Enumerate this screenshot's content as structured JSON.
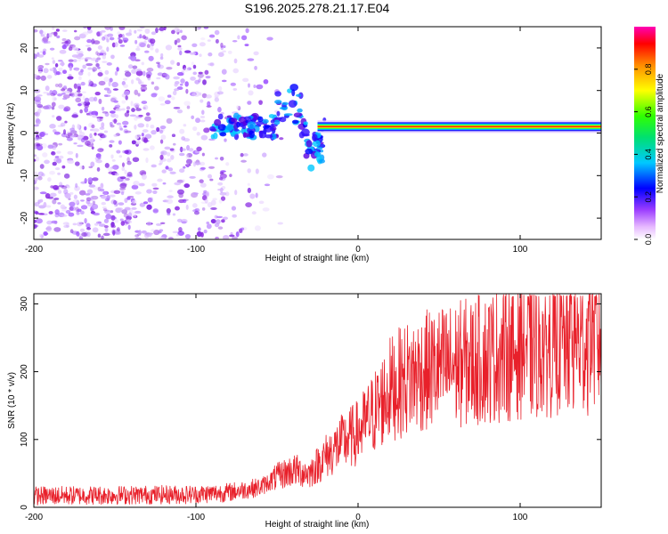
{
  "title": "S196.2025.278.21.17.E04",
  "colors": {
    "signal": "#e8202a",
    "scatter": "#8a2be2",
    "axis": "#000000"
  },
  "chart_data": [
    {
      "type": "heatmap",
      "name": "spectrogram",
      "xlabel": "Height of straight line (km)",
      "ylabel": "Frequency (Hz)",
      "xlim": [
        -200,
        150
      ],
      "ylim": [
        -25,
        25
      ],
      "xticks": [
        -200,
        -100,
        0,
        100
      ],
      "yticks": [
        -20,
        -10,
        0,
        10,
        20
      ],
      "dominant_frequency_hz": 1.5,
      "noise_band_x": [
        -200,
        -60
      ],
      "colorbar": {
        "label": "Normalized spectral amplitude",
        "range": [
          0.0,
          1.0
        ],
        "ticks": [
          0.0,
          0.2,
          0.4,
          0.6,
          0.8
        ],
        "tick_labels": [
          "0.0",
          "0.2",
          "0.4",
          "0.6",
          "0.8"
        ]
      }
    },
    {
      "type": "line",
      "name": "snr",
      "xlabel": "Height of straight line (km)",
      "ylabel": "SNR (10 * v/v)",
      "xlim": [
        -200,
        150
      ],
      "ylim": [
        0,
        315
      ],
      "xticks": [
        -200,
        -100,
        0,
        100
      ],
      "yticks": [
        0,
        100,
        200,
        300
      ],
      "series": [
        {
          "name": "SNR",
          "x": [
            -200,
            -150,
            -100,
            -80,
            -60,
            -50,
            -40,
            -30,
            -20,
            -10,
            0,
            10,
            20,
            30,
            40,
            60,
            80,
            100,
            120,
            150
          ],
          "y": [
            17,
            18,
            19,
            22,
            30,
            45,
            55,
            50,
            75,
            95,
            110,
            140,
            175,
            190,
            200,
            210,
            220,
            235,
            240,
            245
          ]
        }
      ]
    }
  ]
}
